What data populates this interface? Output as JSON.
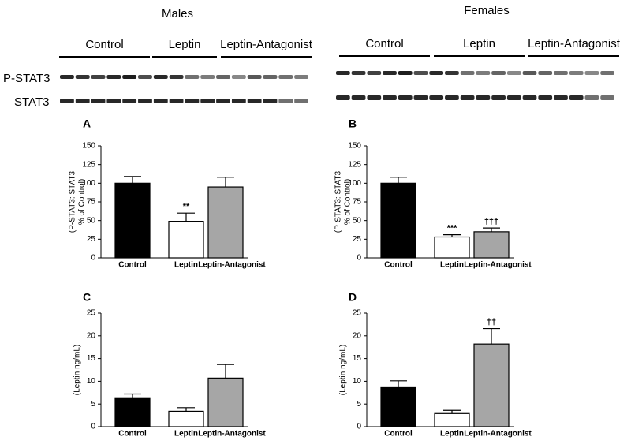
{
  "blots": {
    "males": {
      "title": "Males",
      "groups": [
        "Control",
        "Leptin",
        "Leptin-Antagonist"
      ]
    },
    "females": {
      "title": "Females",
      "groups": [
        "Control",
        "Leptin",
        "Leptin-Antagonist"
      ]
    },
    "rows": [
      "P-STAT3",
      "STAT3"
    ]
  },
  "chart_data": [
    {
      "type": "bar",
      "panel": "A",
      "ylabel": [
        "(P-STAT3: STAT3",
        "% of Control)"
      ],
      "categories": [
        "Control",
        "Leptin",
        "Leptin-Antagonist"
      ],
      "values": [
        100,
        49,
        95
      ],
      "errors": [
        9,
        11,
        13
      ],
      "annotations": [
        null,
        "**",
        null
      ],
      "colors": [
        "#000000",
        "#ffffff",
        "#a6a6a6"
      ],
      "ylim": [
        0,
        150
      ],
      "yticks": [
        0,
        25,
        50,
        75,
        100,
        125,
        150
      ]
    },
    {
      "type": "bar",
      "panel": "B",
      "ylabel": [
        "(P-STAT3: STAT3",
        "% of Control)"
      ],
      "categories": [
        "Control",
        "Leptin",
        "Leptin-Antagonist"
      ],
      "values": [
        100,
        28,
        35
      ],
      "errors": [
        8,
        3,
        5
      ],
      "annotations": [
        null,
        "***",
        "†††"
      ],
      "colors": [
        "#000000",
        "#ffffff",
        "#a6a6a6"
      ],
      "ylim": [
        0,
        150
      ],
      "yticks": [
        0,
        25,
        50,
        75,
        100,
        125,
        150
      ]
    },
    {
      "type": "bar",
      "panel": "C",
      "ylabel": [
        "(Leptin ng/mL)"
      ],
      "categories": [
        "Control",
        "Leptin",
        "Leptin-Antagonist"
      ],
      "values": [
        6.2,
        3.4,
        10.7
      ],
      "errors": [
        1.0,
        0.8,
        3.0
      ],
      "annotations": [
        null,
        null,
        null
      ],
      "colors": [
        "#000000",
        "#ffffff",
        "#a6a6a6"
      ],
      "ylim": [
        0,
        25
      ],
      "yticks": [
        0,
        5,
        10,
        15,
        20,
        25
      ]
    },
    {
      "type": "bar",
      "panel": "D",
      "ylabel": [
        "(Leptin ng/mL)"
      ],
      "categories": [
        "Control",
        "Leptin",
        "Leptin-Antagonist"
      ],
      "values": [
        8.6,
        2.9,
        18.2
      ],
      "errors": [
        1.5,
        0.7,
        3.4
      ],
      "annotations": [
        null,
        null,
        "††"
      ],
      "colors": [
        "#000000",
        "#ffffff",
        "#a6a6a6"
      ],
      "ylim": [
        0,
        25
      ],
      "yticks": [
        0,
        5,
        10,
        15,
        20,
        25
      ]
    }
  ]
}
